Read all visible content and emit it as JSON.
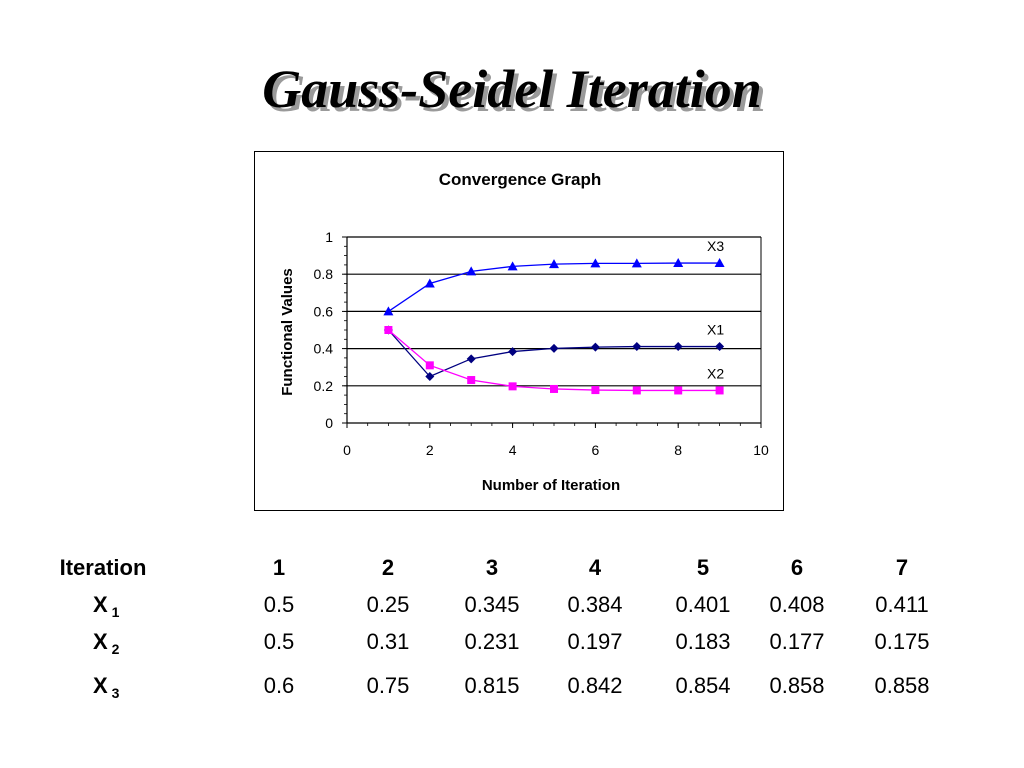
{
  "slide": {
    "title": "Gauss-Seidel Iteration"
  },
  "chart_data": {
    "type": "line",
    "title": "Convergence Graph",
    "xlabel": "Number of Iteration",
    "ylabel": "Functional Values",
    "xlim": [
      0,
      10
    ],
    "ylim": [
      0,
      1
    ],
    "x_ticks": [
      "0",
      "2",
      "4",
      "6",
      "8",
      "10"
    ],
    "y_ticks": [
      "0",
      "0.2",
      "0.4",
      "0.6",
      "0.8",
      "1"
    ],
    "grid": "horizontal major",
    "x": [
      1,
      2,
      3,
      4,
      5,
      6,
      7,
      8,
      9
    ],
    "series": [
      {
        "name": "X1",
        "color": "#000080",
        "marker": "diamond",
        "values": [
          0.5,
          0.25,
          0.345,
          0.384,
          0.401,
          0.408,
          0.411,
          0.411,
          0.411
        ]
      },
      {
        "name": "X2",
        "color": "#ff00ff",
        "marker": "square",
        "values": [
          0.5,
          0.31,
          0.231,
          0.197,
          0.183,
          0.177,
          0.175,
          0.175,
          0.175
        ]
      },
      {
        "name": "X3",
        "color": "#0000ff",
        "marker": "triangle",
        "values": [
          0.6,
          0.75,
          0.815,
          0.842,
          0.854,
          0.858,
          0.858,
          0.86,
          0.86
        ]
      }
    ]
  },
  "table": {
    "header_label": "Iteration",
    "columns": [
      "1",
      "2",
      "3",
      "4",
      "5",
      "6",
      "7"
    ],
    "rows": [
      {
        "label": "X",
        "sub": "1",
        "values": [
          "0.5",
          "0.25",
          "0.345",
          "0.384",
          "0.401",
          "0.408",
          "0.411"
        ]
      },
      {
        "label": "X",
        "sub": "2",
        "values": [
          "0.5",
          "0.31",
          "0.231",
          "0.197",
          "0.183",
          "0.177",
          "0.175"
        ]
      },
      {
        "label": "X",
        "sub": "3",
        "values": [
          "0.6",
          "0.75",
          "0.815",
          "0.842",
          "0.854",
          "0.858",
          "0.858"
        ]
      }
    ]
  }
}
